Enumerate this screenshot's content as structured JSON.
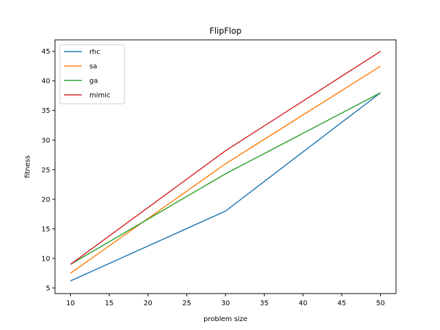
{
  "chart_data": {
    "type": "line",
    "title": "FlipFlop",
    "xlabel": "problem size",
    "ylabel": "fitness",
    "x": [
      10,
      30,
      50
    ],
    "xticks": [
      10,
      15,
      20,
      25,
      30,
      35,
      40,
      45,
      50
    ],
    "yticks": [
      5,
      10,
      15,
      20,
      25,
      30,
      35,
      40,
      45
    ],
    "xlim": [
      8,
      52
    ],
    "ylim": [
      4.06,
      46.94
    ],
    "grid": false,
    "legend_position": "top-left",
    "series": [
      {
        "name": "rhc",
        "color": "#1f77b4",
        "values": [
          6.2,
          18.0,
          38.0
        ]
      },
      {
        "name": "sa",
        "color": "#ff7f0e",
        "values": [
          7.5,
          26.0,
          42.5
        ]
      },
      {
        "name": "ga",
        "color": "#2ca02c",
        "values": [
          9.0,
          24.3,
          38.0
        ]
      },
      {
        "name": "mimic",
        "color": "#d62728",
        "values": [
          9.0,
          28.2,
          45.0
        ]
      }
    ]
  }
}
